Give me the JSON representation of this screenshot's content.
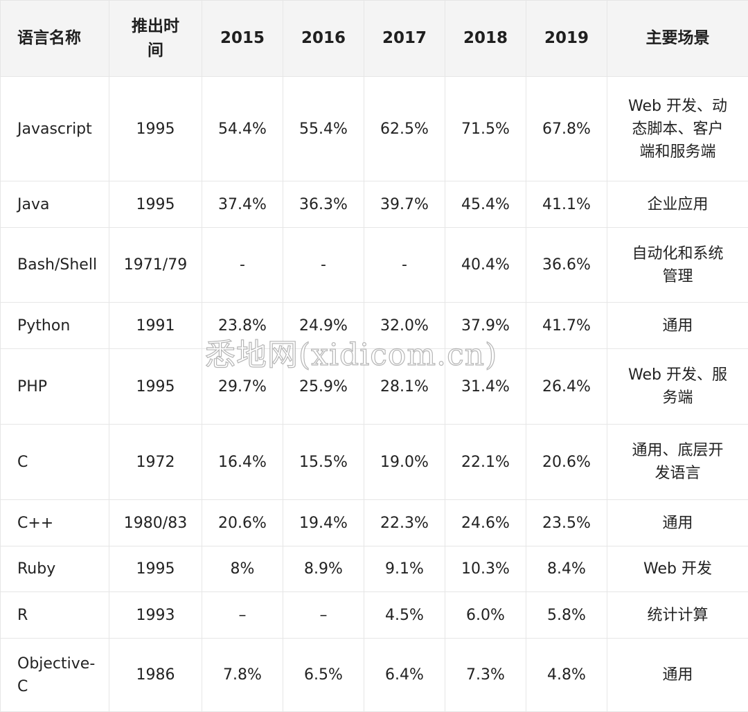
{
  "header": {
    "name": "语言名称",
    "release": "推出时间",
    "y2015": "2015",
    "y2016": "2016",
    "y2017": "2017",
    "y2018": "2018",
    "y2019": "2019",
    "scene": "主要场景"
  },
  "rows": [
    {
      "name": "Javascript",
      "release": "1995",
      "y2015": "54.4%",
      "y2016": "55.4%",
      "y2017": "62.5%",
      "y2018": "71.5%",
      "y2019": "67.8%",
      "scene": "Web 开发、动态脚本、客户端和服务端"
    },
    {
      "name": "Java",
      "release": "1995",
      "y2015": "37.4%",
      "y2016": "36.3%",
      "y2017": "39.7%",
      "y2018": "45.4%",
      "y2019": "41.1%",
      "scene": "企业应用"
    },
    {
      "name": "Bash/Shell",
      "release": "1971/79",
      "y2015": "-",
      "y2016": "-",
      "y2017": "-",
      "y2018": "40.4%",
      "y2019": "36.6%",
      "scene": "自动化和系统管理"
    },
    {
      "name": "Python",
      "release": "1991",
      "y2015": "23.8%",
      "y2016": "24.9%",
      "y2017": "32.0%",
      "y2018": "37.9%",
      "y2019": "41.7%",
      "scene": "通用"
    },
    {
      "name": "PHP",
      "release": "1995",
      "y2015": "29.7%",
      "y2016": "25.9%",
      "y2017": "28.1%",
      "y2018": "31.4%",
      "y2019": "26.4%",
      "scene": "Web 开发、服务端"
    },
    {
      "name": "C",
      "release": "1972",
      "y2015": "16.4%",
      "y2016": "15.5%",
      "y2017": "19.0%",
      "y2018": "22.1%",
      "y2019": "20.6%",
      "scene": "通用、底层开发语言"
    },
    {
      "name": "C++",
      "release": "1980/83",
      "y2015": "20.6%",
      "y2016": "19.4%",
      "y2017": "22.3%",
      "y2018": "24.6%",
      "y2019": "23.5%",
      "scene": "通用"
    },
    {
      "name": "Ruby",
      "release": "1995",
      "y2015": "8%",
      "y2016": "8.9%",
      "y2017": "9.1%",
      "y2018": "10.3%",
      "y2019": "8.4%",
      "scene": "Web 开发"
    },
    {
      "name": "R",
      "release": "1993",
      "y2015": "–",
      "y2016": "–",
      "y2017": "4.5%",
      "y2018": "6.0%",
      "y2019": "5.8%",
      "scene": "统计计算"
    },
    {
      "name": "Objective-C",
      "release": "1986",
      "y2015": "7.8%",
      "y2016": "6.5%",
      "y2017": "6.4%",
      "y2018": "7.3%",
      "y2019": "4.8%",
      "scene": "通用"
    }
  ],
  "watermark": "悉地网(xidicom.cn)"
}
